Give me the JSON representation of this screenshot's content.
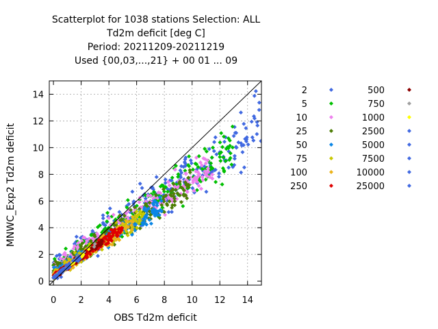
{
  "chart_data": {
    "type": "scatter",
    "title_lines": [
      "Scatterplot for 1038 stations Selection: ALL",
      "Td2m deficit [deg C]",
      "Period: 20211209-20211219",
      "Used {00,03,...,21} + 00 01 ... 09"
    ],
    "xlabel": "OBS Td2m deficit",
    "ylabel": "MNWC_Exp2 Td2m deficit",
    "xlim": [
      -0.3,
      15
    ],
    "ylim": [
      -0.3,
      15
    ],
    "xticks": [
      0,
      2,
      4,
      6,
      8,
      10,
      12,
      14
    ],
    "yticks": [
      0,
      2,
      4,
      6,
      8,
      10,
      12,
      14
    ],
    "grid": true,
    "diagonal": true,
    "legend_position": "right",
    "legend": [
      {
        "label": "2",
        "color": "#4169e1"
      },
      {
        "label": "5",
        "color": "#00c000"
      },
      {
        "label": "10",
        "color": "#ee82ee"
      },
      {
        "label": "25",
        "color": "#4e7d06"
      },
      {
        "label": "50",
        "color": "#0a86e6"
      },
      {
        "label": "75",
        "color": "#c8c800"
      },
      {
        "label": "100",
        "color": "#ecb31a"
      },
      {
        "label": "250",
        "color": "#e00000"
      },
      {
        "label": "500",
        "color": "#8b0000"
      },
      {
        "label": "750",
        "color": "#a0a0a0"
      },
      {
        "label": "1000",
        "color": "#ffff00"
      },
      {
        "label": "2500",
        "color": "#4169e1"
      },
      {
        "label": "5000",
        "color": "#4169e1"
      },
      {
        "label": "7500",
        "color": "#4169e1"
      },
      {
        "label": "10000",
        "color": "#4169e1"
      },
      {
        "label": "25000",
        "color": "#4169e1"
      }
    ],
    "density_bands": [
      {
        "label": "2",
        "color": "#4169e1",
        "slope": 0.72,
        "intercept": 1.0,
        "spread": 2.6,
        "xmax": 15,
        "count": 240
      },
      {
        "label": "5",
        "color": "#00c000",
        "slope": 0.7,
        "intercept": 1.0,
        "spread": 2.0,
        "xmax": 13,
        "count": 230
      },
      {
        "label": "10",
        "color": "#ee82ee",
        "slope": 0.68,
        "intercept": 0.9,
        "spread": 1.6,
        "xmax": 11.5,
        "count": 220
      },
      {
        "label": "25",
        "color": "#4e7d06",
        "slope": 0.65,
        "intercept": 0.8,
        "spread": 1.3,
        "xmax": 10,
        "count": 220
      },
      {
        "label": "50",
        "color": "#0a86e6",
        "slope": 0.65,
        "intercept": 0.6,
        "spread": 1.0,
        "xmax": 7.8,
        "count": 180
      },
      {
        "label": "75",
        "color": "#c8c800",
        "slope": 0.68,
        "intercept": 0.5,
        "spread": 0.8,
        "xmax": 6.5,
        "count": 150
      },
      {
        "label": "100",
        "color": "#ecb31a",
        "slope": 0.68,
        "intercept": 0.45,
        "spread": 0.65,
        "xmax": 5.8,
        "count": 130
      },
      {
        "label": "250",
        "color": "#e00000",
        "slope": 0.72,
        "intercept": 0.35,
        "spread": 0.5,
        "xmax": 5.0,
        "count": 170
      },
      {
        "label": "500",
        "color": "#8b0000",
        "slope": 0.75,
        "intercept": 0.3,
        "spread": 0.3,
        "xmax": 3.5,
        "count": 70
      },
      {
        "label": "750",
        "color": "#a0a0a0",
        "slope": 0.8,
        "intercept": 0.3,
        "spread": 0.2,
        "xmax": 3.0,
        "count": 25
      },
      {
        "label": "1000",
        "color": "#ffff00",
        "slope": 0.8,
        "intercept": 0.25,
        "spread": 0.15,
        "xmax": 2.6,
        "count": 20
      },
      {
        "label": "2500",
        "color": "#4169e1",
        "slope": 0.85,
        "intercept": 0.25,
        "spread": 0.25,
        "xmax": 2.0,
        "count": 45
      }
    ]
  }
}
